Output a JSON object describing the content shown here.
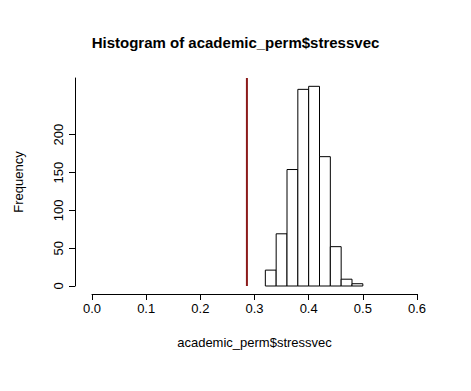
{
  "chart_data": {
    "type": "histogram",
    "title": "Histogram of academic_perm$stressvec",
    "x_label": "academic_perm$stressvec",
    "y_label": "Frequency",
    "bins": [
      0.32,
      0.34,
      0.36,
      0.38,
      0.4,
      0.42,
      0.44,
      0.46,
      0.48,
      0.5
    ],
    "values": [
      21,
      69,
      154,
      260,
      264,
      171,
      52,
      9,
      3
    ],
    "color": "#ffffff",
    "xlim": [
      0,
      0.6
    ],
    "xticks": [
      {
        "value": 0,
        "label": "0.0"
      },
      0.1,
      0.2,
      0.3,
      0.4,
      0.5,
      0.6
    ],
    "ylim": [
      0,
      275
    ],
    "yticks": [
      0,
      50,
      100,
      150,
      200
    ],
    "grid": false,
    "reference_line": {
      "x": 0.286,
      "color": "#8b1a1a"
    }
  }
}
